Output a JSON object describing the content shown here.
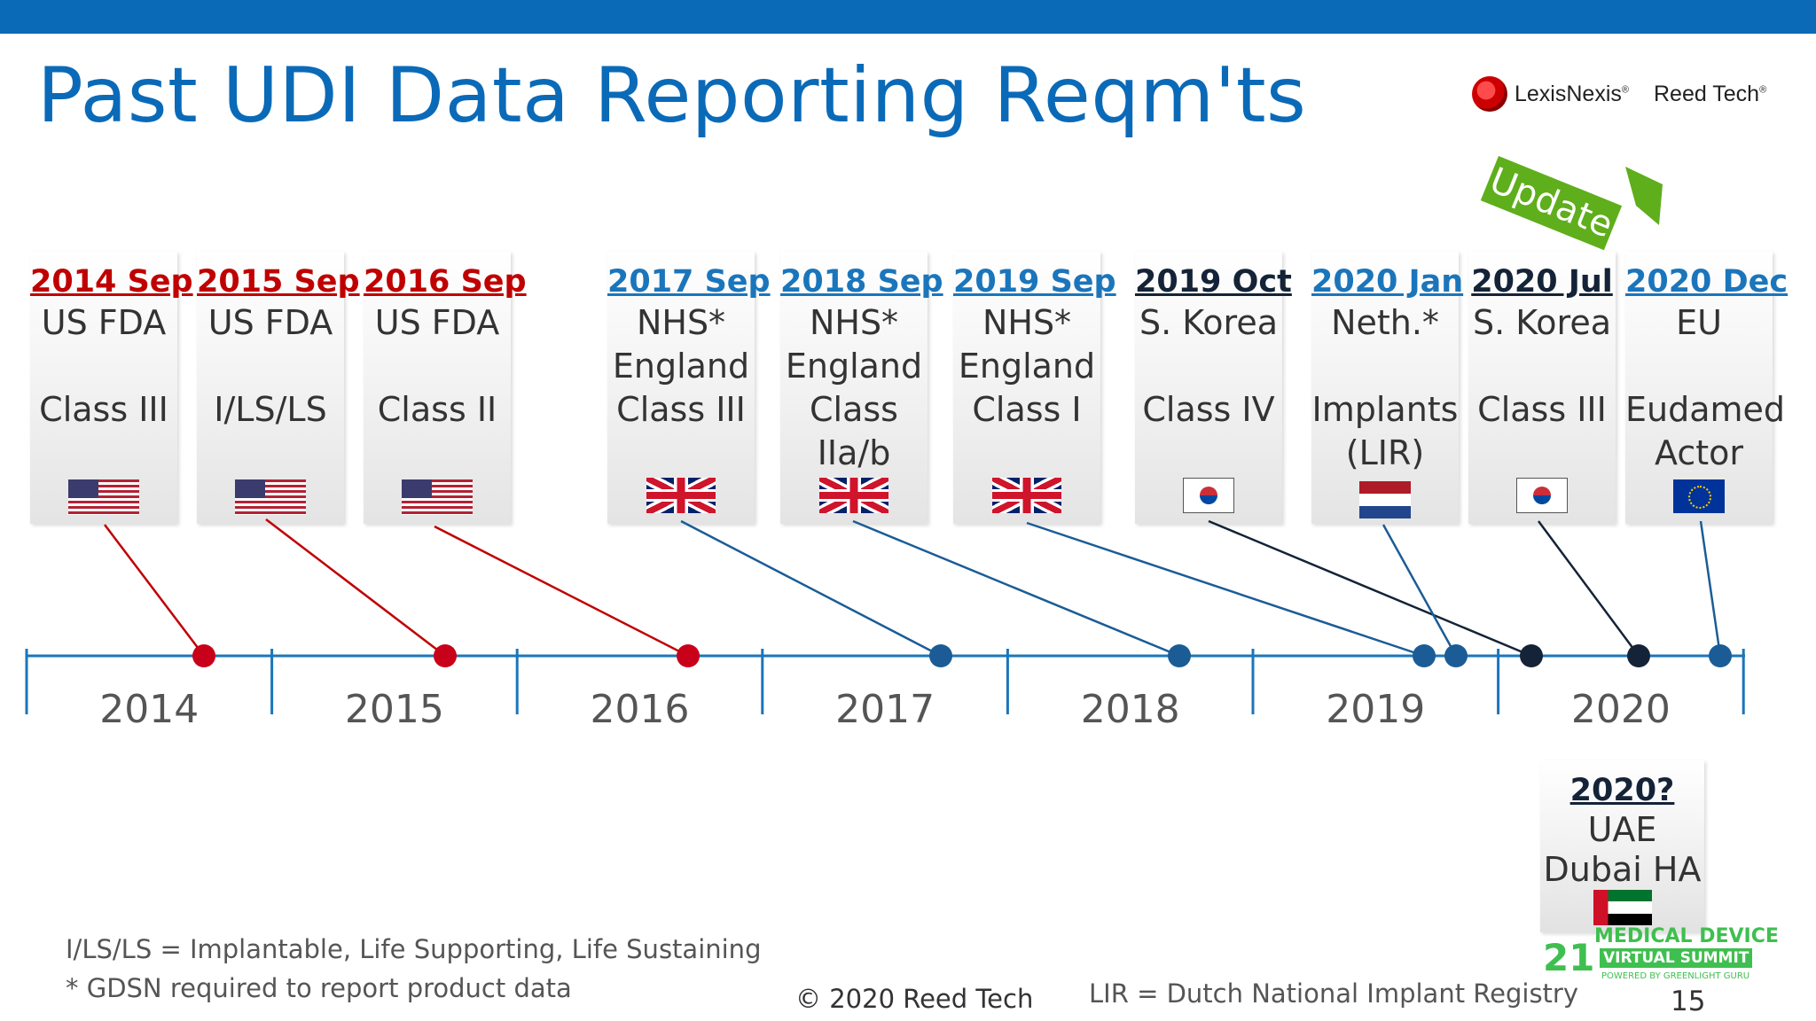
{
  "title": "Past UDI Data Reporting Reqm'ts",
  "logo": {
    "brand1": "LexisNexis",
    "brand1_mark": "®",
    "brand2": "Reed Tech",
    "brand2_mark": "®"
  },
  "update_label": "Update",
  "colors": {
    "red": "#c00000",
    "blue": "#1b75bb",
    "navy": "#142337",
    "axis": "#1b75bb",
    "accent": "#0a6ab8",
    "update_green": "#5fae1c"
  },
  "cards": [
    {
      "date": "2014 Sep",
      "body": "US FDA\n\nClass III",
      "flag": "us-flag-icon",
      "color": "red"
    },
    {
      "date": "2015 Sep",
      "body": "US FDA\n\nI/LS/LS",
      "flag": "us-flag-icon",
      "color": "red"
    },
    {
      "date": "2016 Sep",
      "body": "US FDA\n\nClass II",
      "flag": "us-flag-icon",
      "color": "red"
    },
    {
      "date": "2017 Sep",
      "body": "NHS*\nEngland\nClass III",
      "flag": "uk-flag-icon",
      "color": "blue"
    },
    {
      "date": "2018 Sep",
      "body": "NHS*\nEngland\nClass\nIIa/b",
      "flag": "uk-flag-icon",
      "color": "blue"
    },
    {
      "date": "2019 Sep",
      "body": "NHS*\nEngland\nClass I",
      "flag": "uk-flag-icon",
      "color": "blue"
    },
    {
      "date": "2019 Oct",
      "body": "S. Korea\n\nClass IV",
      "flag": "korea-flag-icon",
      "color": "navy"
    },
    {
      "date": "2020 Jan",
      "body": "Neth.*\n\nImplants\n(LIR)",
      "flag": "netherlands-flag-icon",
      "color": "blue"
    },
    {
      "date": "2020 Jul",
      "body": "S. Korea\n\nClass III",
      "flag": "korea-flag-icon",
      "color": "navy"
    },
    {
      "date": "2020 Dec",
      "body": "EU\n\nEudamed\nActor",
      "flag": "eu-flag-icon",
      "color": "blue"
    }
  ],
  "uae_card": {
    "date": "2020?",
    "body": "UAE\nDubai HA",
    "flag": "uae-flag-icon"
  },
  "years": [
    "2014",
    "2015",
    "2016",
    "2017",
    "2018",
    "2019",
    "2020"
  ],
  "footnotes": {
    "line1": "I/LS/LS = Implantable, Life Supporting, Life Sustaining",
    "line2": "* GDSN required to report product data",
    "copyright": "© 2020 Reed Tech",
    "lir": "LIR = Dutch National Implant Registry",
    "page_number": "15"
  },
  "summit": {
    "number": "21",
    "line1": "MEDICAL DEVICE",
    "line2": "VIRTUAL SUMMIT",
    "line3": "POWERED BY GREENLIGHT GURU"
  }
}
